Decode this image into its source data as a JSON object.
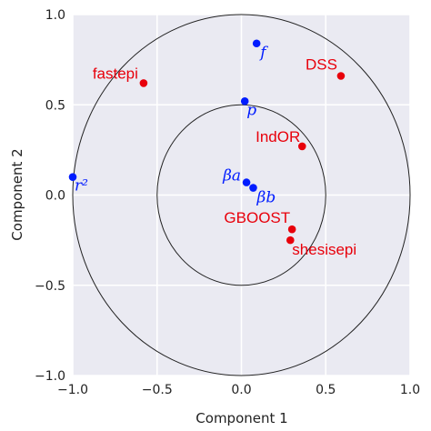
{
  "chart_data": {
    "type": "scatter",
    "xlabel": "Component 1",
    "ylabel": "Component 2",
    "xlim": [
      -1.0,
      1.0
    ],
    "ylim": [
      -1.0,
      1.0
    ],
    "x_ticks": [
      "−1.0",
      "−0.5",
      "0.0",
      "0.5",
      "1.0"
    ],
    "y_ticks": [
      "−1.0",
      "−0.5",
      "0.0",
      "0.5",
      "1.0"
    ],
    "grid": true,
    "background_color": "#EAEAF2",
    "circles": [
      {
        "radius": 1.0
      },
      {
        "radius": 0.5
      }
    ],
    "series": [
      {
        "color": "#E8000B",
        "points": [
          {
            "label": "fastepi",
            "x": -0.58,
            "y": 0.62
          },
          {
            "label": "DSS",
            "x": 0.59,
            "y": 0.66
          },
          {
            "label": "IndOR",
            "x": 0.36,
            "y": 0.27
          },
          {
            "label": "GBOOST",
            "x": 0.3,
            "y": -0.19
          },
          {
            "label": "shesisepi",
            "x": 0.29,
            "y": -0.25
          }
        ]
      },
      {
        "color": "#001CFF",
        "points": [
          {
            "label": "f",
            "x": 0.09,
            "y": 0.84
          },
          {
            "label": "p",
            "x": 0.02,
            "y": 0.52
          },
          {
            "label": "r²",
            "x": -1.0,
            "y": 0.1
          },
          {
            "label": "βa",
            "x": 0.03,
            "y": 0.07
          },
          {
            "label": "βb",
            "x": 0.07,
            "y": 0.04
          }
        ]
      }
    ]
  }
}
